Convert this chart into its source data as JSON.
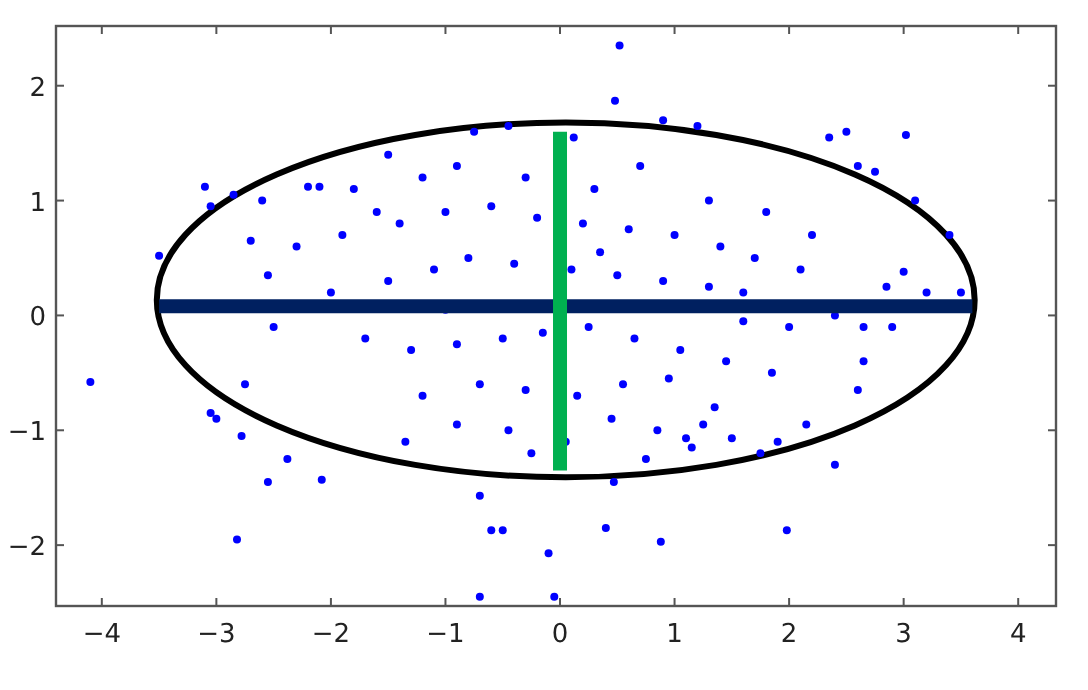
{
  "chart_data": {
    "type": "scatter",
    "xlim": [
      -4.4,
      4.33
    ],
    "ylim": [
      -2.53,
      2.52
    ],
    "xticks": [
      -4,
      -3,
      -2,
      -1,
      0,
      1,
      2,
      3,
      4
    ],
    "yticks": [
      -2,
      -1,
      0,
      1,
      2
    ],
    "grid": false,
    "series": [
      {
        "color": "#0000ff",
        "marker": "circle",
        "x": [
          -4.1,
          -2.82,
          0.52,
          0.48,
          3.02,
          2.5,
          -0.7,
          -0.05,
          0.88,
          1.98,
          0.4,
          -0.5,
          -0.6,
          -0.1,
          2.4,
          1.5,
          1.1,
          0.47,
          -0.7,
          -3.05,
          -3.0,
          -2.55,
          -2.38,
          -2.75,
          -2.78,
          -2.08,
          -3.5,
          -3.1,
          -3.05,
          -2.85,
          -2.6,
          -2.7,
          -2.55,
          -2.2,
          -2.1,
          -1.5,
          -0.75,
          -0.45,
          0.12,
          0.9,
          1.2,
          2.35,
          2.6,
          2.75,
          3.1,
          3.4,
          3.0,
          3.2,
          2.85,
          2.9,
          3.5,
          2.65,
          2.65,
          2.6,
          2.15,
          1.9,
          1.75,
          -1.8,
          -1.6,
          -1.2,
          -0.9,
          -0.3,
          0.3,
          0.7,
          1.3,
          1.8,
          2.2,
          -2.3,
          -1.9,
          -1.4,
          -1.0,
          -0.6,
          -0.2,
          0.2,
          0.6,
          1.0,
          1.4,
          1.7,
          2.1,
          -2.0,
          -1.5,
          -1.1,
          -0.8,
          -0.4,
          0.1,
          0.5,
          0.9,
          1.3,
          1.6,
          2.0,
          2.4,
          -1.7,
          -1.3,
          -0.9,
          -0.5,
          -0.15,
          0.25,
          0.65,
          1.05,
          1.45,
          1.85,
          -1.2,
          -0.7,
          -0.3,
          0.15,
          0.55,
          0.95,
          1.35,
          -0.9,
          -0.45,
          0.05,
          0.45,
          0.85,
          1.25,
          -2.5,
          -1.0,
          0.35,
          1.6,
          -0.25,
          0.75,
          -1.35,
          1.15
        ],
        "values": [
          -0.58,
          -1.95,
          2.35,
          1.87,
          1.57,
          1.6,
          -2.45,
          -2.45,
          -1.97,
          -1.87,
          -1.85,
          -1.87,
          -1.87,
          -2.07,
          -1.3,
          -1.07,
          -1.07,
          -1.45,
          -1.57,
          -0.85,
          -0.9,
          -1.45,
          -1.25,
          -0.6,
          -1.05,
          -1.43,
          0.52,
          1.12,
          0.95,
          1.05,
          1.0,
          0.65,
          0.35,
          1.12,
          1.12,
          1.4,
          1.6,
          1.65,
          1.55,
          1.7,
          1.65,
          1.55,
          1.3,
          1.25,
          1.0,
          0.7,
          0.38,
          0.2,
          0.25,
          -0.1,
          0.2,
          -0.4,
          -0.1,
          -0.65,
          -0.95,
          -1.1,
          -1.2,
          1.1,
          0.9,
          1.2,
          1.3,
          1.2,
          1.1,
          1.3,
          1.0,
          0.9,
          0.7,
          0.6,
          0.7,
          0.8,
          0.9,
          0.95,
          0.85,
          0.8,
          0.75,
          0.7,
          0.6,
          0.5,
          0.4,
          0.2,
          0.3,
          0.4,
          0.5,
          0.45,
          0.4,
          0.35,
          0.3,
          0.25,
          0.2,
          -0.1,
          0.0,
          -0.2,
          -0.3,
          -0.25,
          -0.2,
          -0.15,
          -0.1,
          -0.2,
          -0.3,
          -0.4,
          -0.5,
          -0.7,
          -0.6,
          -0.65,
          -0.7,
          -0.6,
          -0.55,
          -0.8,
          -0.95,
          -1.0,
          -1.1,
          -0.9,
          -1.0,
          -0.95,
          -0.1,
          0.05,
          0.55,
          -0.05,
          -1.2,
          -1.25,
          -1.1,
          -1.15
        ]
      },
      {
        "type": "line",
        "color": "#002060",
        "x": [
          -3.5,
          0,
          3.6
        ],
        "values": [
          0.08,
          0.08,
          0.08
        ]
      },
      {
        "type": "line",
        "color": "#00b050",
        "x": [
          0,
          0
        ],
        "values": [
          -1.35,
          1.6
        ]
      }
    ]
  }
}
